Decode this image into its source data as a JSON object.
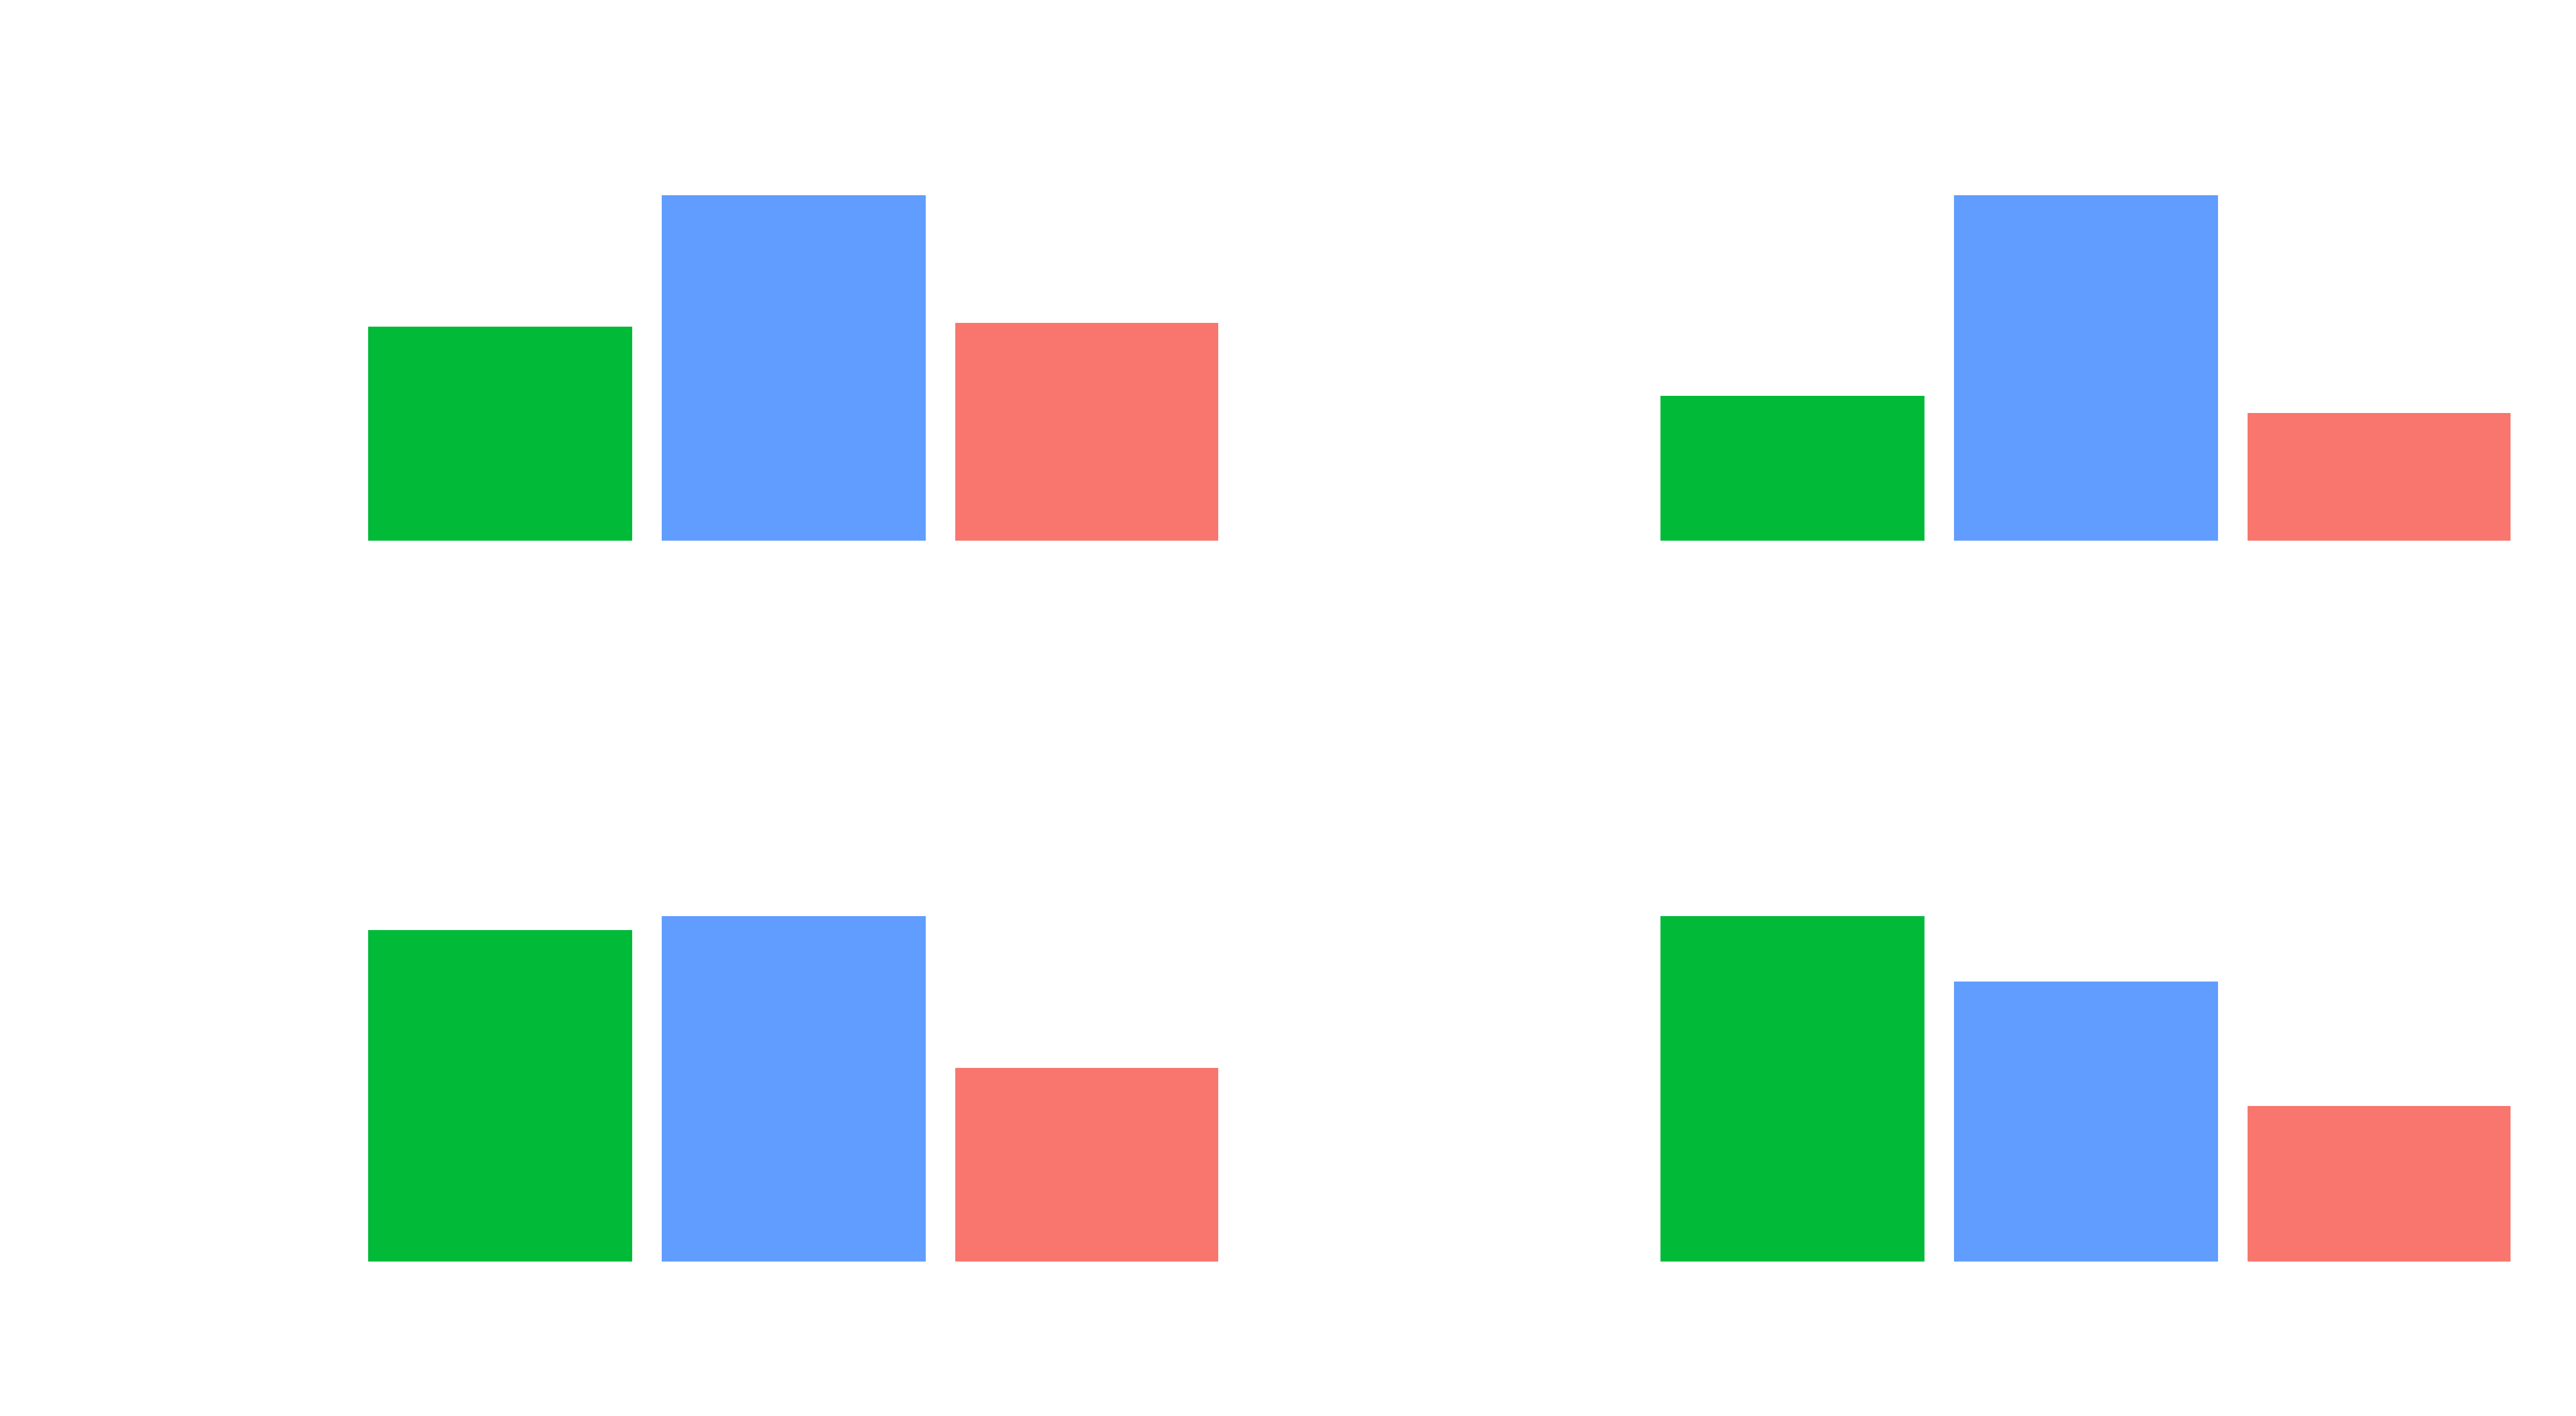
{
  "chart_data": [
    {
      "type": "bar",
      "title": "",
      "xlabel": "",
      "ylabel": "",
      "categories": [
        "",
        "",
        ""
      ],
      "values": [
        0.62,
        1.0,
        0.63
      ],
      "colors": [
        "#00BA38",
        "#619CFF",
        "#F8766D"
      ],
      "ylim": [
        0,
        1
      ],
      "grid": false,
      "axes_visible": false
    },
    {
      "type": "bar",
      "title": "",
      "xlabel": "",
      "ylabel": "",
      "categories": [
        "",
        "",
        ""
      ],
      "values": [
        0.42,
        1.0,
        0.37
      ],
      "colors": [
        "#00BA38",
        "#619CFF",
        "#F8766D"
      ],
      "ylim": [
        0,
        1
      ],
      "grid": false,
      "axes_visible": false
    },
    {
      "type": "bar",
      "title": "",
      "xlabel": "",
      "ylabel": "",
      "categories": [
        "",
        "",
        ""
      ],
      "values": [
        0.96,
        1.0,
        0.56
      ],
      "colors": [
        "#00BA38",
        "#619CFF",
        "#F8766D"
      ],
      "ylim": [
        0,
        1
      ],
      "grid": false,
      "axes_visible": false
    },
    {
      "type": "bar",
      "title": "",
      "xlabel": "",
      "ylabel": "",
      "categories": [
        "",
        "",
        ""
      ],
      "values": [
        1.0,
        0.81,
        0.45
      ],
      "colors": [
        "#00BA38",
        "#619CFF",
        "#F8766D"
      ],
      "ylim": [
        0,
        1
      ],
      "grid": false,
      "axes_visible": false
    }
  ]
}
